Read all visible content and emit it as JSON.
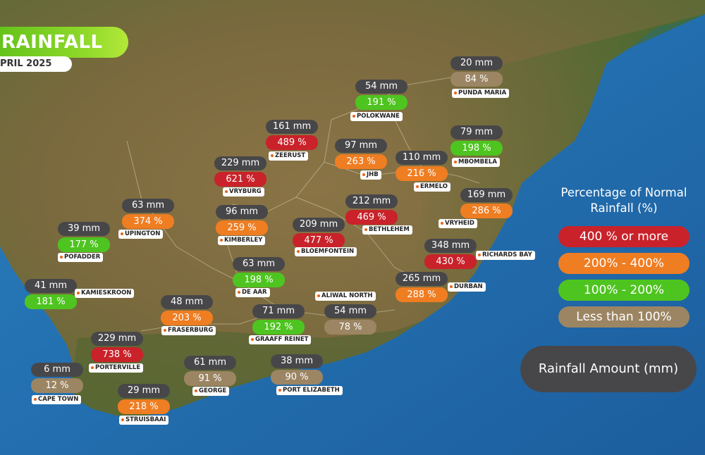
{
  "title": "RAINFALL",
  "subtitle": "PRIL 2025",
  "legend": {
    "title_line1": "Percentage of Normal",
    "title_line2": "Rainfall (%)",
    "categories": [
      {
        "label": "400 % or more",
        "color": "#c9222a"
      },
      {
        "label": "200% - 400%",
        "color": "#ef7d22"
      },
      {
        "label": "100% - 200%",
        "color": "#4ec420"
      },
      {
        "label": "Less than 100%",
        "color": "#9c8563"
      }
    ],
    "amount_label": "Rainfall Amount (mm)",
    "amount_color": "#47474a"
  },
  "stations": [
    {
      "name": "PUNDA MARIA",
      "mm": "20 mm",
      "pct": "84 %",
      "category": 3
    },
    {
      "name": "POLOKWANE",
      "mm": "54 mm",
      "pct": "191 %",
      "category": 2
    },
    {
      "name": "ZEERUST",
      "mm": "161 mm",
      "pct": "489 %",
      "category": 0
    },
    {
      "name": "JHB",
      "mm": "97 mm",
      "pct": "263 %",
      "category": 1
    },
    {
      "name": "ERMELO",
      "mm": "110 mm",
      "pct": "216 %",
      "category": 1
    },
    {
      "name": "MBOMBELA",
      "mm": "79 mm",
      "pct": "198 %",
      "category": 2
    },
    {
      "name": "VRYBURG",
      "mm": "229 mm",
      "pct": "621 %",
      "category": 0
    },
    {
      "name": "VRYHEID",
      "mm": "169 mm",
      "pct": "286 %",
      "category": 1
    },
    {
      "name": "UPINGTON",
      "mm": "63 mm",
      "pct": "374 %",
      "category": 1
    },
    {
      "name": "KIMBERLEY",
      "mm": "96 mm",
      "pct": "259 %",
      "category": 1
    },
    {
      "name": "BETHLEHEM",
      "mm": "212 mm",
      "pct": "469 %",
      "category": 0
    },
    {
      "name": "POFADDER",
      "mm": "39 mm",
      "pct": "177 %",
      "category": 2
    },
    {
      "name": "BLOEMFONTEIN",
      "mm": "209 mm",
      "pct": "477 %",
      "category": 0
    },
    {
      "name": "RICHARDS BAY",
      "mm": "348 mm",
      "pct": "430 %",
      "category": 0
    },
    {
      "name": "DE AAR",
      "mm": "63 mm",
      "pct": "198 %",
      "category": 2
    },
    {
      "name": "KAMIESKROON",
      "mm": "41 mm",
      "pct": "181 %",
      "category": 2
    },
    {
      "name": "DURBAN",
      "mm": "265 mm",
      "pct": "288 %",
      "category": 1
    },
    {
      "name": "ALIWAL NORTH",
      "mm": "54 mm",
      "pct": "78 %",
      "category": 3
    },
    {
      "name": "FRASERBURG",
      "mm": "48 mm",
      "pct": "203 %",
      "category": 1
    },
    {
      "name": "GRAAFF REINET",
      "mm": "71 mm",
      "pct": "192 %",
      "category": 2
    },
    {
      "name": "PORTERVILLE",
      "mm": "229 mm",
      "pct": "738 %",
      "category": 0
    },
    {
      "name": "GEORGE",
      "mm": "61 mm",
      "pct": "91 %",
      "category": 3
    },
    {
      "name": "PORT ELIZABETH",
      "mm": "38 mm",
      "pct": "90 %",
      "category": 3
    },
    {
      "name": "CAPE TOWN",
      "mm": "6 mm",
      "pct": "12 %",
      "category": 3
    },
    {
      "name": "STRUISBAAI",
      "mm": "29 mm",
      "pct": "218 %",
      "category": 1
    }
  ]
}
